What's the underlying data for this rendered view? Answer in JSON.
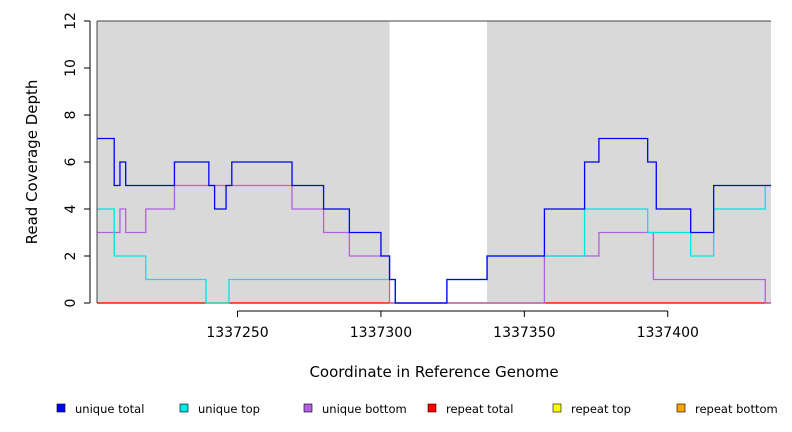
{
  "chart_data": {
    "type": "line",
    "xlabel": "Coordinate in Reference Genome",
    "ylabel": "Read Coverage Depth",
    "xlim": [
      1337201,
      1337436
    ],
    "ylim": [
      0,
      12
    ],
    "x_ticks": [
      1337250,
      1337300,
      1337350,
      1337400
    ],
    "x_tick_labels": [
      "1337250",
      "1337300",
      "1337350",
      "1337400"
    ],
    "y_ticks": [
      0,
      2,
      4,
      6,
      8,
      10,
      12
    ],
    "y_tick_labels": [
      "0",
      "2",
      "4",
      "6",
      "8",
      "10",
      "12"
    ],
    "shaded_regions": [
      [
        1337201,
        1337303
      ],
      [
        1337337,
        1337436
      ]
    ],
    "background_color": "#d9d9d9",
    "legend_position": "bottom",
    "series": [
      {
        "name": "unique total",
        "color": "#0000ff",
        "steps": [
          [
            1337201,
            7
          ],
          [
            1337207,
            5
          ],
          [
            1337209,
            6
          ],
          [
            1337211,
            5
          ],
          [
            1337228,
            6
          ],
          [
            1337240,
            5
          ],
          [
            1337242,
            4
          ],
          [
            1337246,
            5
          ],
          [
            1337248,
            6
          ],
          [
            1337269,
            5
          ],
          [
            1337280,
            4
          ],
          [
            1337289,
            3
          ],
          [
            1337300,
            2
          ],
          [
            1337303,
            1
          ],
          [
            1337305,
            0
          ],
          [
            1337323,
            1
          ],
          [
            1337337,
            2
          ],
          [
            1337357,
            4
          ],
          [
            1337371,
            6
          ],
          [
            1337376,
            7
          ],
          [
            1337393,
            6
          ],
          [
            1337396,
            4
          ],
          [
            1337408,
            3
          ],
          [
            1337416,
            5
          ],
          [
            1337436,
            5
          ]
        ]
      },
      {
        "name": "unique top",
        "color": "#00e5e5",
        "steps": [
          [
            1337201,
            4
          ],
          [
            1337207,
            2
          ],
          [
            1337218,
            1
          ],
          [
            1337239,
            0
          ],
          [
            1337247,
            1
          ],
          [
            1337305,
            0
          ],
          [
            1337323,
            1
          ],
          [
            1337337,
            2
          ],
          [
            1337371,
            4
          ],
          [
            1337393,
            3
          ],
          [
            1337408,
            2
          ],
          [
            1337416,
            4
          ],
          [
            1337434,
            5
          ],
          [
            1337436,
            5
          ]
        ]
      },
      {
        "name": "unique bottom",
        "color": "#b060e0",
        "steps": [
          [
            1337201,
            3
          ],
          [
            1337209,
            4
          ],
          [
            1337211,
            3
          ],
          [
            1337218,
            4
          ],
          [
            1337228,
            5
          ],
          [
            1337269,
            4
          ],
          [
            1337280,
            3
          ],
          [
            1337289,
            2
          ],
          [
            1337303,
            0
          ],
          [
            1337357,
            2
          ],
          [
            1337376,
            3
          ],
          [
            1337395,
            1
          ],
          [
            1337434,
            0
          ],
          [
            1337436,
            0
          ]
        ]
      },
      {
        "name": "repeat total",
        "color": "#ff0000",
        "steps": [
          [
            1337201,
            0
          ],
          [
            1337436,
            0
          ]
        ]
      },
      {
        "name": "repeat top",
        "color": "#ffff00",
        "steps": [
          [
            1337201,
            0
          ],
          [
            1337436,
            0
          ]
        ]
      },
      {
        "name": "repeat bottom",
        "color": "#ffa500",
        "steps": [
          [
            1337201,
            0
          ],
          [
            1337436,
            0
          ]
        ]
      }
    ]
  }
}
